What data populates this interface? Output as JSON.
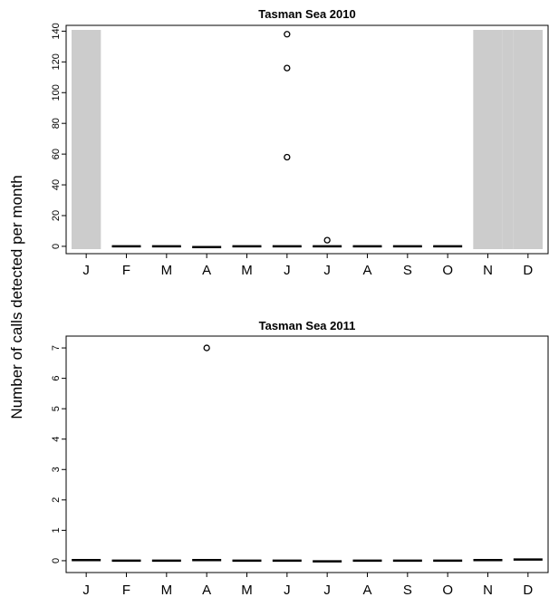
{
  "figure": {
    "ylabel": "Number of calls detected per month"
  },
  "chart_data": [
    {
      "type": "box",
      "title": "Tasman Sea 2010",
      "categories": [
        "J",
        "F",
        "M",
        "A",
        "M",
        "J",
        "J",
        "A",
        "S",
        "O",
        "N",
        "D"
      ],
      "medians": [
        null,
        0,
        0,
        -0.5,
        0,
        0,
        0,
        0,
        0,
        0,
        null,
        null
      ],
      "outliers": [
        {
          "category_index": 5,
          "value": 138
        },
        {
          "category_index": 5,
          "value": 116
        },
        {
          "category_index": 5,
          "value": 58
        },
        {
          "category_index": 6,
          "value": 4
        }
      ],
      "no_data_months": [
        0,
        10,
        11
      ],
      "no_data_color": "#cccccc",
      "ylim": [
        -3,
        142
      ],
      "yticks": [
        0,
        20,
        40,
        60,
        80,
        100,
        120,
        140
      ]
    },
    {
      "type": "box",
      "title": "Tasman Sea 2011",
      "categories": [
        "J",
        "F",
        "M",
        "A",
        "M",
        "J",
        "J",
        "A",
        "S",
        "O",
        "N",
        "D"
      ],
      "medians": [
        0.02,
        0,
        0,
        0.02,
        0,
        0,
        -0.02,
        0,
        0,
        0,
        0.02,
        0.04
      ],
      "outliers": [
        {
          "category_index": 3,
          "value": 7
        }
      ],
      "no_data_months": [],
      "no_data_color": "#cccccc",
      "ylim": [
        -0.3,
        7.3
      ],
      "yticks": [
        0,
        1,
        2,
        3,
        4,
        5,
        6,
        7
      ]
    }
  ]
}
